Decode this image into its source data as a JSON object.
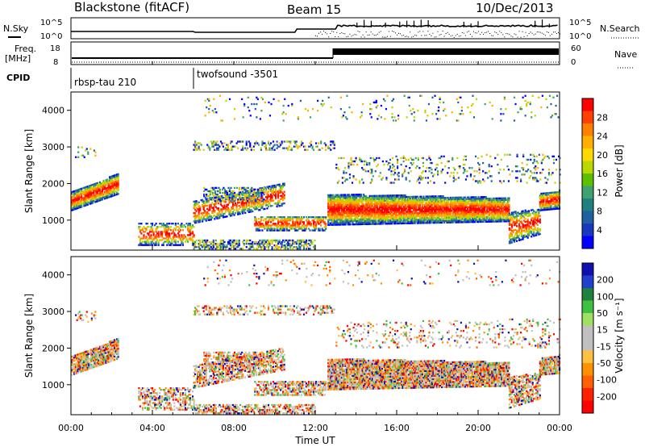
{
  "header": {
    "title": "Blackstone (fitACF)",
    "beam": "Beam 15",
    "date": "10/Dec/2013"
  },
  "labels": {
    "nsky": "N.Sky",
    "nsearch": "N.Search",
    "freq_line1": "Freq.",
    "freq_line2": "[MHz]",
    "nave": "Nave",
    "cpid": "CPID",
    "noise_top_left": "10^5",
    "noise_bottom_left": "10^0",
    "noise_top_right": "10^5",
    "noise_bottom_right": "10^0",
    "freq_top": "18",
    "freq_bottom": "8",
    "nave_top": "60",
    "nave_bottom": "0",
    "cpid_1": "rbsp-tau 210",
    "cpid_2": "twofsound -3501"
  },
  "chart_data": [
    {
      "type": "heatmap",
      "name_panel": "power",
      "ylabel": "Slant Range [km]",
      "ylim": [
        180,
        4500
      ],
      "yticks": [
        1000,
        2000,
        3000,
        4000
      ],
      "xticks": [
        "00:00",
        "04:00",
        "08:00",
        "12:00",
        "16:00",
        "20:00",
        "00:00"
      ],
      "colorbar_label": "Power [dB]",
      "colorbar_ticks": [
        "28",
        "24",
        "20",
        "16",
        "12",
        "8",
        "4"
      ],
      "colorbar_colors": [
        "#ff0000",
        "#ff4000",
        "#ff8000",
        "#ffb000",
        "#ffd800",
        "#b8d800",
        "#5cc000",
        "#40a070",
        "#208080",
        "#2060a0",
        "#1838c0",
        "#0000ff"
      ]
    },
    {
      "type": "heatmap",
      "name_panel": "velocity",
      "ylabel": "Slant Range [km]",
      "ylim": [
        180,
        4500
      ],
      "yticks": [
        1000,
        2000,
        3000,
        4000
      ],
      "xticks": [
        "00:00",
        "04:00",
        "08:00",
        "12:00",
        "16:00",
        "20:00",
        "00:00"
      ],
      "xlabel": "Time UT",
      "colorbar_label": "Velocity [m s⁻¹]",
      "colorbar_ticks": [
        "200",
        "100",
        "50",
        "15",
        "-15",
        "-50",
        "-100",
        "-200"
      ],
      "colorbar_colors": [
        "#1010b0",
        "#2040d0",
        "#208040",
        "#40c040",
        "#a0e060",
        "#c0c0c0",
        "#c0c0c0",
        "#ffc040",
        "#ff9000",
        "#ff6000",
        "#ff2000",
        "#ff0000"
      ]
    }
  ]
}
